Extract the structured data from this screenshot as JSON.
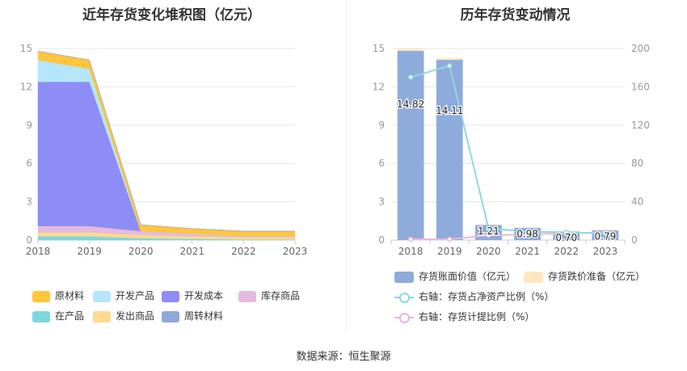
{
  "left_title": "近年存货变化堆积图（亿元）",
  "right_title": "历年存货变动情况",
  "source": "数据来源：恒生聚源",
  "colors": {
    "原材料": "#FFC53D",
    "在产品": "#7ED6DF",
    "开发产品": "#B5E6FB",
    "发出商品": "#FFD98C",
    "开发成本": "#8E8CF5",
    "周转材料": "#8FA8DA",
    "库存商品": "#E5BADF",
    "bar": "#8EABDB",
    "reserve": "#FFE8C0",
    "line1": "#8ED8E0",
    "line2": "#E8B5DE"
  },
  "chart_data": [
    {
      "type": "area",
      "title": "近年存货变化堆积图（亿元）",
      "x": [
        "2018",
        "2019",
        "2020",
        "2021",
        "2022",
        "2023"
      ],
      "ylim": [
        0,
        15
      ],
      "yticks": [
        0,
        3,
        6,
        9,
        12,
        15
      ],
      "stack_order": [
        "在产品",
        "发出商品",
        "库存商品",
        "开发成本",
        "开发产品",
        "原材料",
        "周转材料"
      ],
      "series": [
        {
          "name": "原材料",
          "values": [
            0.7,
            0.7,
            0.5,
            0.4,
            0.4,
            0.4
          ]
        },
        {
          "name": "开发产品",
          "values": [
            1.7,
            1.0,
            0.0,
            0.0,
            0.0,
            0.0
          ]
        },
        {
          "name": "开发成本",
          "values": [
            11.3,
            11.3,
            0.0,
            0.0,
            0.0,
            0.0
          ]
        },
        {
          "name": "库存商品",
          "values": [
            0.5,
            0.5,
            0.3,
            0.2,
            0.1,
            0.1
          ]
        },
        {
          "name": "在产品",
          "values": [
            0.3,
            0.3,
            0.15,
            0.1,
            0.05,
            0.05
          ]
        },
        {
          "name": "发出商品",
          "values": [
            0.3,
            0.3,
            0.25,
            0.2,
            0.15,
            0.15
          ]
        },
        {
          "name": "周转材料",
          "values": [
            0.0,
            0.0,
            0.0,
            0.0,
            0.0,
            0.0
          ]
        }
      ],
      "legend": [
        [
          "原材料",
          "开发产品",
          "开发成本",
          "库存商品"
        ],
        [
          "在产品",
          "发出商品",
          "周转材料"
        ]
      ]
    },
    {
      "type": "bar",
      "title": "历年存货变动情况",
      "categories": [
        "2018",
        "2019",
        "2020",
        "2021",
        "2022",
        "2023"
      ],
      "ylim": [
        0,
        15
      ],
      "yticks": [
        0,
        3,
        6,
        9,
        12,
        15
      ],
      "y2lim": [
        0,
        200
      ],
      "y2ticks": [
        0,
        40,
        80,
        120,
        160,
        200
      ],
      "bars": [
        {
          "name": "存货账面价值（亿元）",
          "values": [
            14.82,
            14.11,
            1.21,
            0.98,
            0.7,
            0.79
          ],
          "labels": [
            "14.82",
            "14.11",
            "1.21",
            "0.98",
            "0.70",
            "0.79"
          ]
        },
        {
          "name": "存货跌价准备（亿元）",
          "values": [
            0.15,
            0.15,
            0.02,
            0.02,
            0.02,
            0.02
          ]
        }
      ],
      "lines": [
        {
          "name": "右轴：存货占净资产比例（%）",
          "values": [
            170,
            182,
            12,
            9,
            8,
            7
          ]
        },
        {
          "name": "右轴：存货计提比例（%）",
          "values": [
            0.8,
            0.8,
            5,
            6,
            7,
            8
          ]
        }
      ]
    }
  ]
}
